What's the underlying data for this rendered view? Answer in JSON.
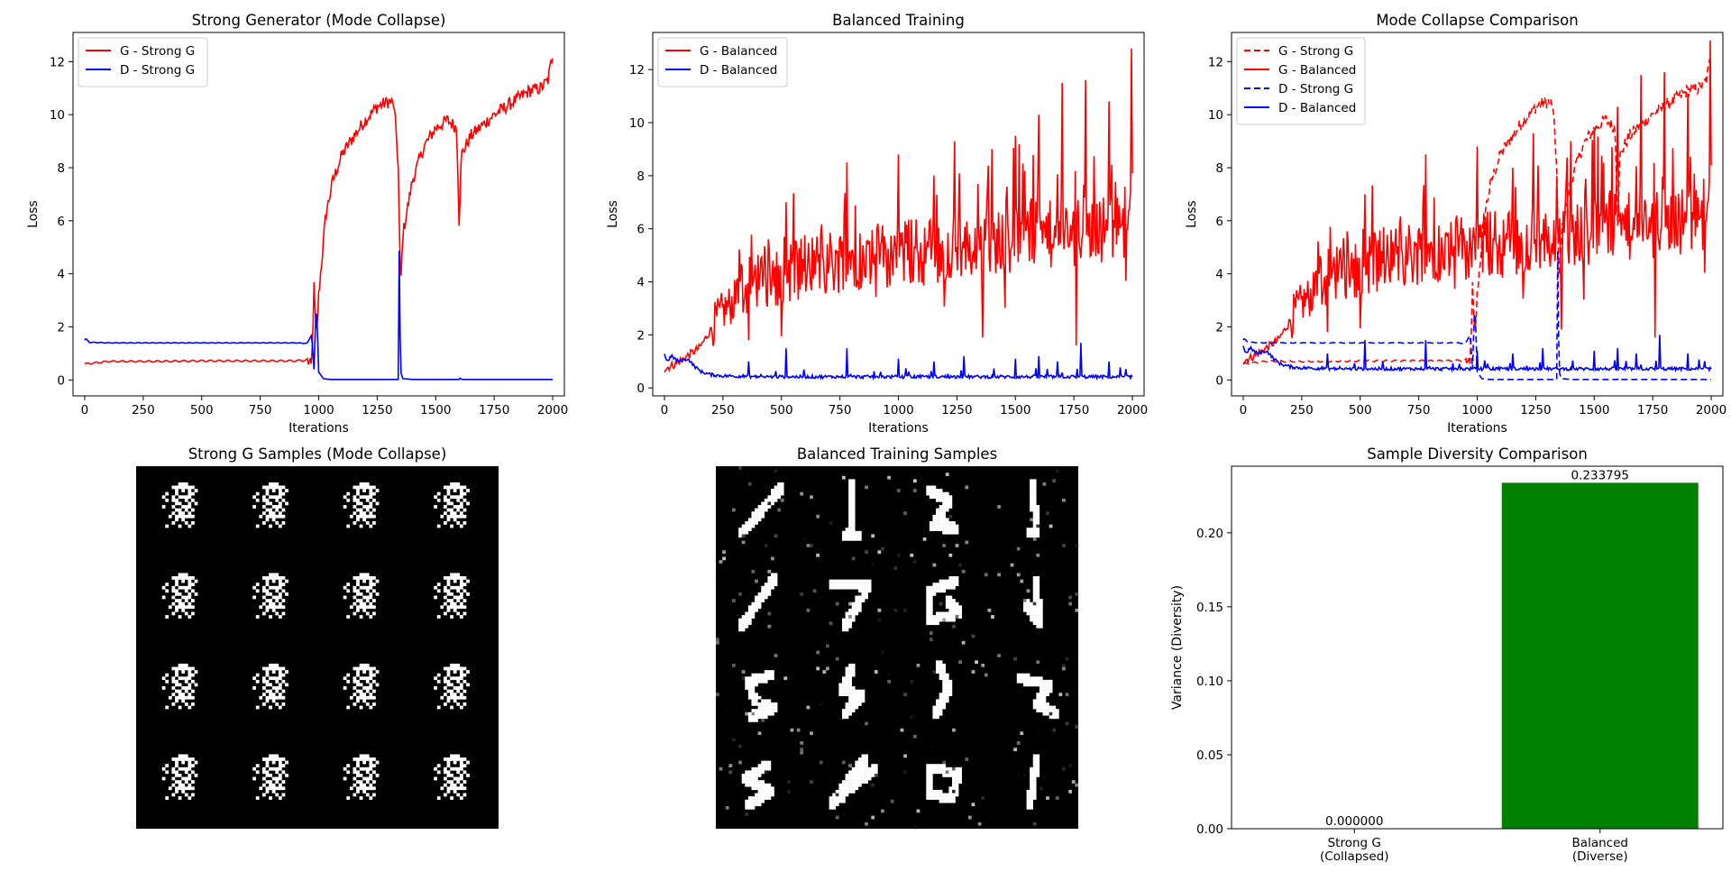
{
  "chart_data": [
    {
      "type": "line",
      "title": "Strong Generator (Mode Collapse)",
      "xlabel": "Iterations",
      "ylabel": "Loss",
      "xlim": [
        -50,
        2050
      ],
      "ylim": [
        -0.6,
        13.1
      ],
      "xticks": [
        0,
        250,
        500,
        750,
        1000,
        1250,
        1500,
        1750,
        2000
      ],
      "yticks": [
        0,
        2,
        4,
        6,
        8,
        10,
        12
      ],
      "legend": "upper-left",
      "series": [
        {
          "name": "G - Strong G",
          "color": "#ff0000",
          "style": "solid",
          "x": [
            0,
            100,
            300,
            500,
            700,
            900,
            950,
            970,
            980,
            990,
            1000,
            1030,
            1060,
            1100,
            1150,
            1200,
            1250,
            1300,
            1320,
            1330,
            1340,
            1345,
            1350,
            1360,
            1400,
            1450,
            1500,
            1550,
            1590,
            1600,
            1610,
            1650,
            1700,
            1750,
            1800,
            1850,
            1900,
            1950,
            1980,
            2000
          ],
          "y": [
            0.6,
            0.7,
            0.7,
            0.72,
            0.72,
            0.72,
            0.75,
            0.5,
            3.5,
            1.5,
            3.2,
            6.2,
            7.5,
            8.5,
            9.2,
            9.8,
            10.3,
            10.5,
            10.4,
            9.5,
            8.0,
            5.5,
            3.5,
            5.5,
            7.5,
            8.8,
            9.5,
            9.8,
            9.5,
            6.0,
            8.5,
            9.2,
            9.6,
            10.0,
            10.3,
            10.6,
            10.9,
            11.0,
            11.3,
            12.3
          ]
        },
        {
          "name": "D - Strong G",
          "color": "#0000ff",
          "style": "solid",
          "x": [
            0,
            5,
            20,
            100,
            300,
            500,
            700,
            900,
            950,
            970,
            980,
            990,
            1000,
            1020,
            1050,
            1100,
            1200,
            1300,
            1340,
            1343,
            1346,
            1350,
            1360,
            1400,
            1600,
            1605,
            1610,
            2000
          ],
          "y": [
            1.5,
            1.55,
            1.42,
            1.4,
            1.4,
            1.4,
            1.4,
            1.4,
            1.38,
            1.7,
            0.4,
            3.0,
            0.3,
            0.05,
            0.02,
            0.02,
            0.02,
            0.02,
            0.02,
            5.8,
            3.0,
            0.3,
            0.05,
            0.02,
            0.02,
            0.08,
            0.02,
            0.02
          ]
        }
      ]
    },
    {
      "type": "line",
      "title": "Balanced Training",
      "xlabel": "Iterations",
      "ylabel": "Loss",
      "xlim": [
        -50,
        2050
      ],
      "ylim": [
        -0.3,
        13.4
      ],
      "xticks": [
        0,
        250,
        500,
        750,
        1000,
        1250,
        1500,
        1750,
        2000
      ],
      "yticks": [
        0,
        2,
        4,
        6,
        8,
        10,
        12
      ],
      "legend": "upper-left",
      "series": [
        {
          "name": "G - Balanced",
          "color": "#ff0000",
          "style": "solid",
          "x": [
            0,
            50,
            100,
            150,
            200,
            250,
            300,
            350,
            400,
            500,
            600,
            700,
            800,
            900,
            1000,
            1100,
            1200,
            1300,
            1400,
            1500,
            1600,
            1700,
            1800,
            1900,
            1950,
            1990,
            2000
          ],
          "y": [
            0.7,
            0.9,
            1.2,
            1.5,
            2.2,
            2.8,
            3.2,
            3.5,
            3.9,
            4.3,
            4.5,
            4.6,
            4.8,
            4.8,
            5.0,
            5.0,
            5.1,
            5.2,
            5.4,
            5.5,
            5.6,
            5.7,
            5.8,
            5.9,
            6.0,
            6.2,
            6.0
          ],
          "spikes": [
            [
              360,
              1.8
            ],
            [
              520,
              7.0
            ],
            [
              780,
              8.5
            ],
            [
              1000,
              8.8
            ],
            [
              1150,
              8.0
            ],
            [
              1240,
              9.3
            ],
            [
              1360,
              1.9
            ],
            [
              1400,
              9.0
            ],
            [
              1500,
              9.5
            ],
            [
              1600,
              10.3
            ],
            [
              1700,
              11.5
            ],
            [
              1760,
              1.6
            ],
            [
              1800,
              11.6
            ],
            [
              1900,
              10.8
            ],
            [
              1995,
              12.8
            ]
          ]
        },
        {
          "name": "D - Balanced",
          "color": "#0000ff",
          "style": "solid",
          "x": [
            0,
            10,
            30,
            60,
            100,
            130,
            160,
            200,
            250,
            300,
            400,
            500,
            700,
            900,
            1100,
            1300,
            1500,
            1700,
            1900,
            2000
          ],
          "y": [
            1.3,
            1.0,
            1.2,
            1.0,
            1.1,
            0.8,
            0.6,
            0.5,
            0.45,
            0.45,
            0.42,
            0.42,
            0.42,
            0.42,
            0.42,
            0.42,
            0.42,
            0.42,
            0.42,
            0.42
          ],
          "spikes": [
            [
              360,
              1.0
            ],
            [
              520,
              1.5
            ],
            [
              780,
              1.5
            ],
            [
              1000,
              1.1
            ],
            [
              1150,
              1.0
            ],
            [
              1280,
              1.2
            ],
            [
              1500,
              1.1
            ],
            [
              1600,
              1.2
            ],
            [
              1680,
              1.0
            ],
            [
              1780,
              1.7
            ],
            [
              1900,
              1.0
            ]
          ]
        }
      ]
    },
    {
      "type": "line",
      "title": "Mode Collapse Comparison",
      "xlabel": "Iterations",
      "ylabel": "Loss",
      "xlim": [
        -50,
        2050
      ],
      "ylim": [
        -0.6,
        13.1
      ],
      "xticks": [
        0,
        250,
        500,
        750,
        1000,
        1250,
        1500,
        1750,
        2000
      ],
      "yticks": [
        0,
        2,
        4,
        6,
        8,
        10,
        12
      ],
      "legend": "upper-left",
      "series": [
        {
          "name": "G - Strong G",
          "color": "#ff0000",
          "style": "dashed",
          "ref": 0,
          "refSeries": 0
        },
        {
          "name": "G - Balanced",
          "color": "#ff0000",
          "style": "solid",
          "ref": 1,
          "refSeries": 0
        },
        {
          "name": "D - Strong G",
          "color": "#0000ff",
          "style": "dashed",
          "ref": 0,
          "refSeries": 1
        },
        {
          "name": "D - Balanced",
          "color": "#0000ff",
          "style": "solid",
          "ref": 1,
          "refSeries": 1
        }
      ]
    },
    {
      "type": "image",
      "title": "Strong G Samples (Mode Collapse)",
      "grid": [
        4,
        4
      ],
      "pixels": 28,
      "mode": "collapsed"
    },
    {
      "type": "image",
      "title": "Balanced Training Samples",
      "grid": [
        4,
        4
      ],
      "pixels": 28,
      "mode": "diverse"
    },
    {
      "type": "bar",
      "title": "Sample Diversity Comparison",
      "ylabel": "Variance (Diversity)",
      "categories": [
        "Strong G\n(Collapsed)",
        "Balanced\n(Diverse)"
      ],
      "values": [
        0.0,
        0.233795
      ],
      "value_labels": [
        "0.000000",
        "0.233795"
      ],
      "colors": [
        "#ff0000",
        "#008000"
      ],
      "ylim": [
        0,
        0.245
      ],
      "yticks": [
        0.0,
        0.05,
        0.1,
        0.15,
        0.2
      ],
      "ytick_labels": [
        "0.00",
        "0.05",
        "0.10",
        "0.15",
        "0.20"
      ]
    }
  ]
}
